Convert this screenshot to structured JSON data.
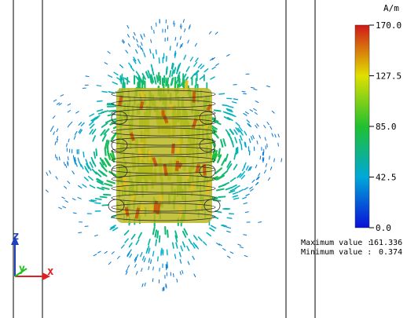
{
  "colorbar": {
    "unit": "A/m",
    "ticks": [
      "170.0",
      "127.5",
      "85.0",
      "42.5",
      "0.0"
    ],
    "max": 170.0,
    "min": 0.0
  },
  "stats": {
    "max_label": "Maximum value :",
    "max_value": "161.336",
    "min_label": "Minimum value :",
    "min_value": "0.374"
  },
  "axes": {
    "x_label": "x",
    "y_label": "y",
    "z_label": "z",
    "x_color": "#e02020",
    "y_color": "#20c020",
    "z_color": "#2040c0"
  },
  "field": {
    "description_colors": [
      "#0a20d8",
      "#00b0d0",
      "#20c030",
      "#e0d000",
      "#d02000"
    ]
  }
}
